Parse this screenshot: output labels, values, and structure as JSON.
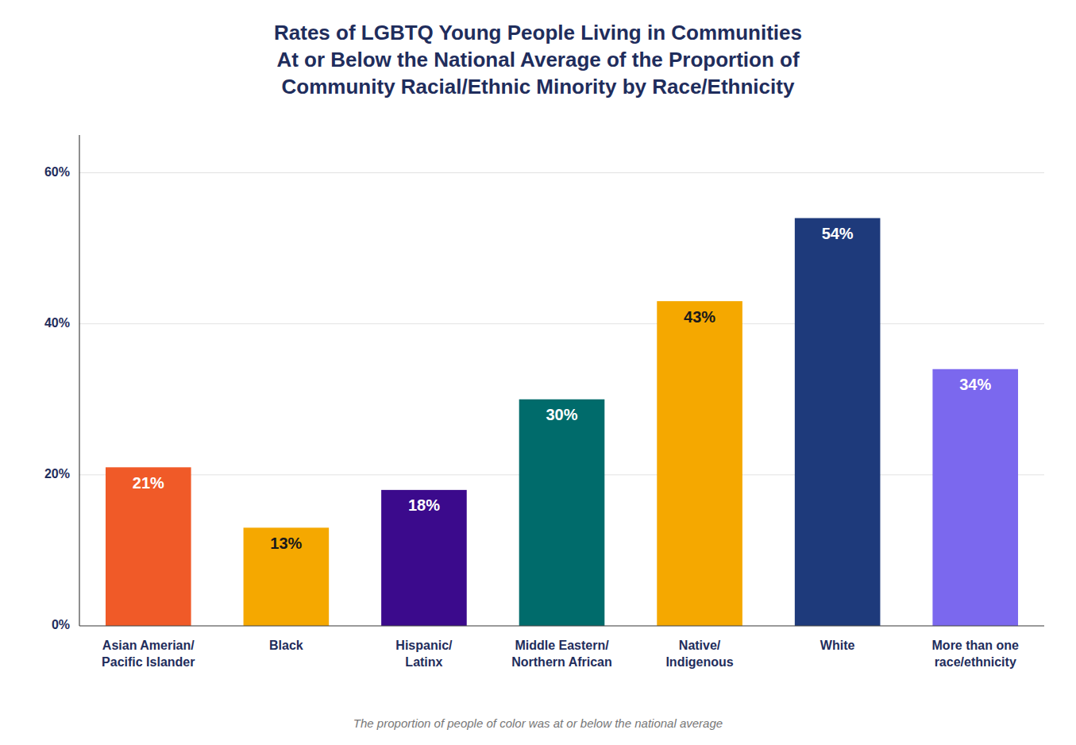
{
  "chart_data": {
    "type": "bar",
    "title": "Rates of LGBTQ Young People Living in Communities\nAt or Below the National Average of the Proportion of\nCommunity Racial/Ethnic Minority by Race/Ethnicity",
    "subtitle": "The proportion of people of color was at or below the national average",
    "categories": [
      "Asian Amerian/\nPacific Islander",
      "Black",
      "Hispanic/\nLatinx",
      "Middle Eastern/\nNorthern African",
      "Native/\nIndigenous",
      "White",
      "More than one\nrace/ethnicity"
    ],
    "values": [
      21,
      13,
      18,
      30,
      43,
      54,
      34
    ],
    "value_labels": [
      "21%",
      "13%",
      "18%",
      "30%",
      "43%",
      "54%",
      "34%"
    ],
    "colors": [
      "#F05A28",
      "#F5A800",
      "#3B0A8C",
      "#006B6B",
      "#F5A800",
      "#1E3A7B",
      "#7B68EE"
    ],
    "ylim": [
      0,
      65
    ],
    "yticks": [
      {
        "value": 0,
        "label": "0%"
      },
      {
        "value": 20,
        "label": "20%"
      },
      {
        "value": 40,
        "label": "40%"
      },
      {
        "value": 60,
        "label": "60%"
      }
    ],
    "grid": true,
    "data_labels": true
  }
}
